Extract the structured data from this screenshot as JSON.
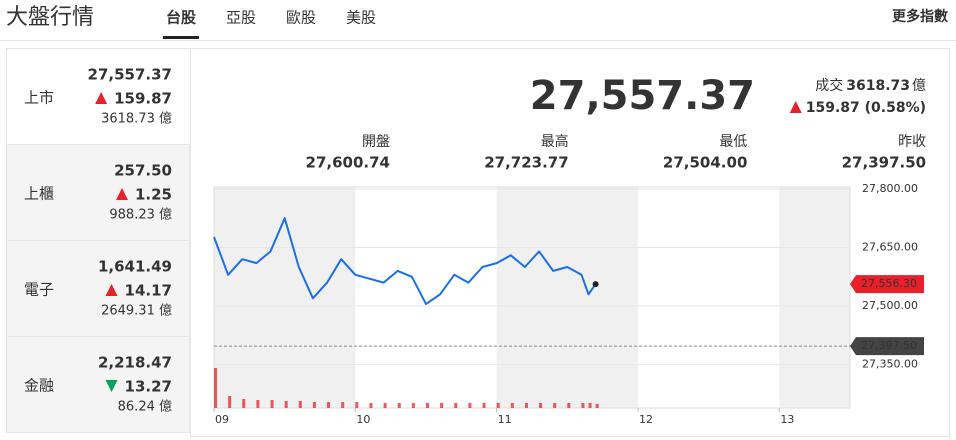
{
  "header": {
    "title": "大盤行情",
    "tabs": [
      "台股",
      "亞股",
      "歐股",
      "美股"
    ],
    "more": "更多指數"
  },
  "markets": [
    {
      "name": "上市",
      "price": "27,557.37",
      "change": "159.87",
      "direction": "up",
      "volume": "3618.73 億"
    },
    {
      "name": "上櫃",
      "price": "257.50",
      "change": "1.25",
      "direction": "up",
      "volume": "988.23 億"
    },
    {
      "name": "電子",
      "price": "1,641.49",
      "change": "14.17",
      "direction": "up",
      "volume": "2649.31 億"
    },
    {
      "name": "金融",
      "price": "2,218.47",
      "change": "13.27",
      "direction": "down",
      "volume": "86.24 億"
    }
  ],
  "quote": {
    "price": "27,557.37",
    "volume_label": "成交",
    "volume": "3618.73",
    "volume_unit": "億",
    "change": "159.87 (0.58%)",
    "direction": "up",
    "stats": [
      {
        "label": "開盤",
        "value": "27,600.74"
      },
      {
        "label": "最高",
        "value": "27,723.77"
      },
      {
        "label": "最低",
        "value": "27,504.00"
      },
      {
        "label": "昨收",
        "value": "27,397.50"
      }
    ]
  },
  "chart_data": {
    "type": "line",
    "color": "#1a6fe8",
    "x": [
      9.0,
      9.1,
      9.2,
      9.3,
      9.4,
      9.5,
      9.6,
      9.7,
      9.8,
      9.9,
      10.0,
      10.1,
      10.2,
      10.3,
      10.4,
      10.5,
      10.6,
      10.7,
      10.8,
      10.9,
      11.0,
      11.1,
      11.2,
      11.3,
      11.4,
      11.5,
      11.6,
      11.65,
      11.7
    ],
    "values": [
      27677,
      27580,
      27620,
      27610,
      27640,
      27725,
      27600,
      27520,
      27560,
      27620,
      27580,
      27570,
      27560,
      27590,
      27575,
      27505,
      27530,
      27580,
      27560,
      27600,
      27610,
      27630,
      27600,
      27640,
      27590,
      27600,
      27580,
      27530,
      27556.3
    ],
    "volumes": [
      40,
      12,
      9,
      8,
      8,
      7,
      7,
      6,
      6,
      6,
      6,
      5,
      5,
      5,
      5,
      5,
      5,
      5,
      5,
      5,
      5,
      5,
      5,
      5,
      5,
      5,
      5,
      5,
      4
    ],
    "xlim": [
      9,
      13.5
    ],
    "xticks": [
      {
        "value": 9,
        "label": "09"
      },
      {
        "value": 10,
        "label": "10"
      },
      {
        "value": 11,
        "label": "11"
      },
      {
        "value": 12,
        "label": "12"
      },
      {
        "value": 13,
        "label": "13"
      }
    ],
    "ylim": [
      27349,
      27805
    ],
    "yticks": [
      {
        "value": 27800,
        "label": "27,800.00"
      },
      {
        "value": 27650,
        "label": "27,650.00"
      },
      {
        "value": 27500,
        "label": "27,500.00"
      },
      {
        "value": 27350,
        "label": "27,350.00"
      }
    ],
    "current": {
      "value": 27556.3,
      "label": "27,556.30"
    },
    "prev_close": {
      "value": 27397.5,
      "label": "27,397.50"
    }
  }
}
